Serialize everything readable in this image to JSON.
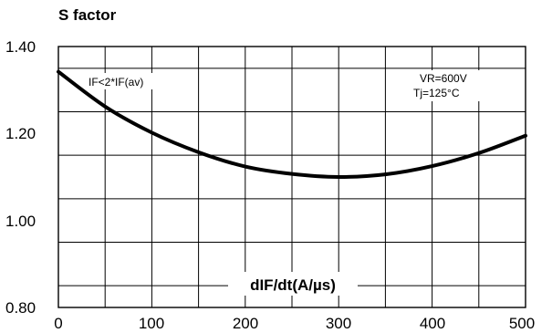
{
  "chart_data": {
    "type": "line",
    "ylabel": "S factor",
    "xlabel": "dIF/dt(A/µs)",
    "xlim": [
      0,
      500
    ],
    "ylim": [
      0.8,
      1.4
    ],
    "x_ticks": [
      "0",
      "100",
      "200",
      "300",
      "400",
      "500"
    ],
    "y_ticks": [
      "1.40",
      "1.20",
      "1.00",
      "0.80"
    ],
    "grid": true,
    "annotations": {
      "condition_left": "IF<2*IF(av)",
      "condition_right_1": "VR=600V",
      "condition_right_2": "Tj=125°C"
    },
    "series": [
      {
        "x": [
          0,
          50,
          100,
          150,
          200,
          250,
          300,
          350,
          400,
          450,
          500
        ],
        "values": [
          1.342,
          1.262,
          1.202,
          1.157,
          1.124,
          1.107,
          1.1,
          1.106,
          1.125,
          1.155,
          1.195
        ]
      }
    ],
    "colors": {
      "line": "#000000",
      "grid": "#000000"
    }
  }
}
